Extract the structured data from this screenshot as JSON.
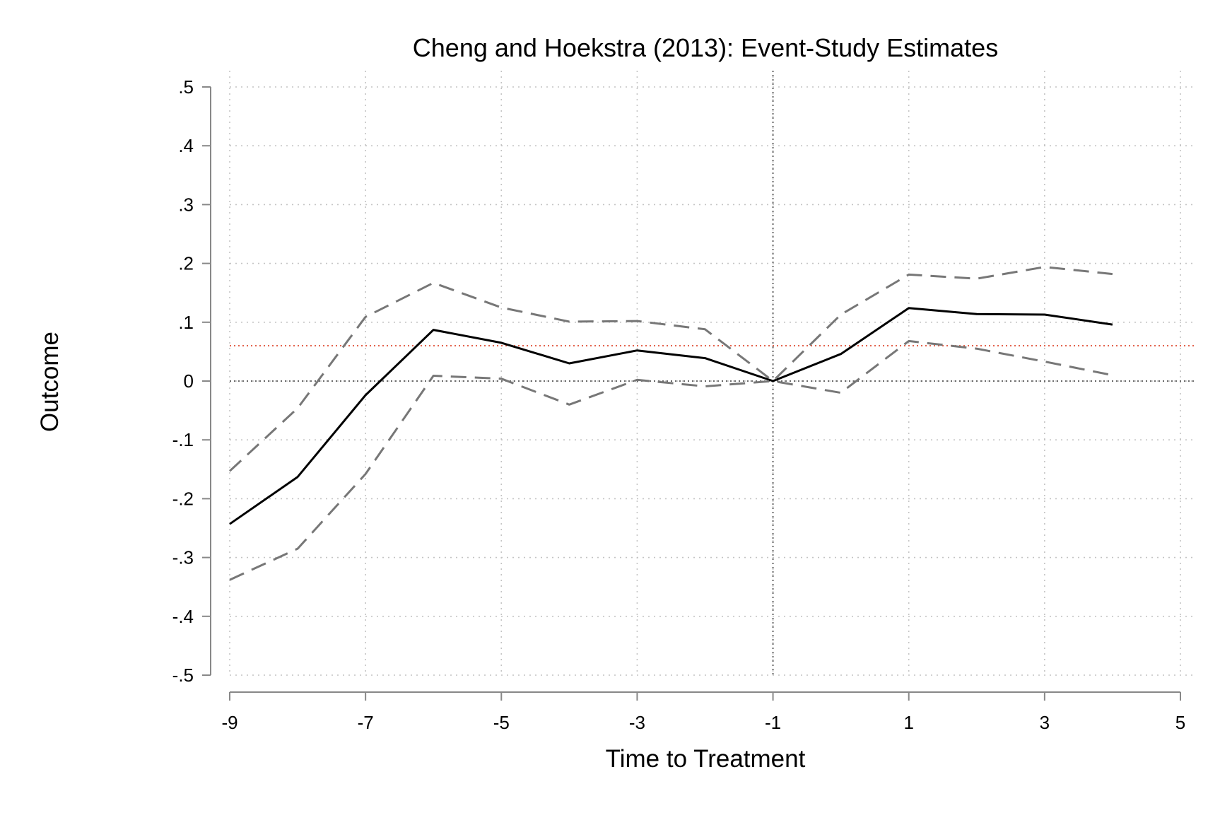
{
  "chart_data": {
    "type": "line",
    "title": "Cheng and Hoekstra (2013): Event-Study Estimates",
    "xlabel": "Time to Treatment",
    "ylabel": "Outcome",
    "xlim": [
      -9,
      5
    ],
    "ylim": [
      -0.5,
      0.5
    ],
    "x_ticks": [
      -9,
      -7,
      -5,
      -3,
      -1,
      1,
      3,
      5
    ],
    "x_tick_labels": [
      "-9",
      "-7",
      "-5",
      "-3",
      "-1",
      "1",
      "3",
      "5"
    ],
    "y_ticks": [
      0.5,
      0.4,
      0.3,
      0.2,
      0.1,
      0,
      -0.1,
      -0.2,
      -0.3,
      -0.4,
      -0.5
    ],
    "y_tick_labels": [
      ".5",
      ".4",
      ".3",
      ".2",
      ".1",
      "0",
      "-.1",
      "-.2",
      "-.3",
      "-.4",
      "-.5"
    ],
    "grid": true,
    "x": [
      -9,
      -8,
      -7,
      -6,
      -5,
      -4,
      -3,
      -2,
      -1,
      0,
      1,
      2,
      3,
      4
    ],
    "series": [
      {
        "style": "solid",
        "color": "#000000",
        "values": [
          -0.243,
          -0.163,
          -0.024,
          0.087,
          0.065,
          0.03,
          0.052,
          0.039,
          0.0,
          0.046,
          0.124,
          0.114,
          0.113,
          0.096
        ]
      },
      {
        "style": "dashed",
        "color": "#777777",
        "values": [
          -0.153,
          -0.046,
          0.109,
          0.167,
          0.125,
          0.101,
          0.102,
          0.088,
          0.0,
          0.113,
          0.181,
          0.174,
          0.194,
          0.182
        ]
      },
      {
        "style": "dashed",
        "color": "#777777",
        "values": [
          -0.338,
          -0.285,
          -0.158,
          0.009,
          0.004,
          -0.04,
          0.002,
          -0.009,
          0.0,
          -0.02,
          0.068,
          0.055,
          0.033,
          0.01
        ]
      }
    ],
    "reference_lines": [
      {
        "axis": "y",
        "value": 0,
        "color": "#555555",
        "style": "dotted"
      },
      {
        "axis": "x",
        "value": -1,
        "color": "#555555",
        "style": "dotted"
      },
      {
        "axis": "y",
        "value": 0.06,
        "color": "#e0533a",
        "style": "dotted"
      }
    ]
  }
}
